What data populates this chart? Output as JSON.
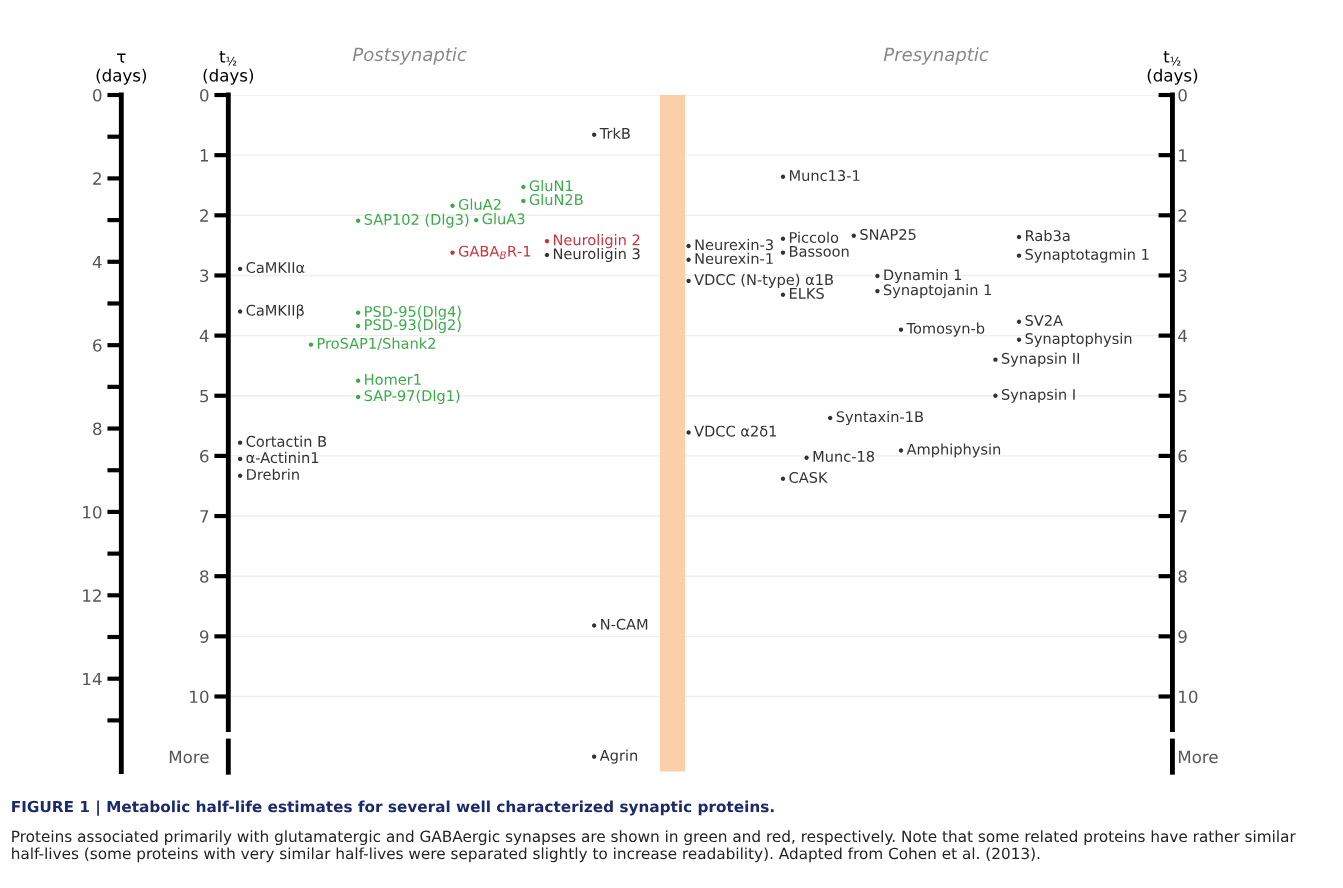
{
  "chart_data": {
    "type": "scatter",
    "marker": "circle",
    "grid": "y",
    "categories": [
      null,
      null,
      null,
      null,
      null,
      null,
      null,
      null,
      null,
      null,
      null,
      null,
      null,
      null,
      null,
      null,
      null,
      null,
      null,
      null,
      null,
      null,
      null,
      null,
      null,
      null,
      null,
      null,
      null,
      null,
      null,
      null,
      null,
      null,
      null,
      null,
      null,
      null,
      null,
      null
    ],
    "ylabel": "t$_{½}$\n(days)",
    "y2label": "τ\n(days)",
    "y3label": "t$_{½}$\n(days)",
    "ylim": [
      11.25,
      0
    ],
    "yticks": [
      0,
      1,
      2,
      3,
      4,
      5,
      6,
      7,
      8,
      9,
      10,
      {
        "value": 11,
        "label": "More"
      }
    ],
    "y2lim": [
      16.23,
      0
    ],
    "y2ticks": [
      0,
      2,
      4,
      6,
      8,
      10,
      12,
      14
    ],
    "y3lim": [
      11.25,
      0
    ],
    "y3ticks": [
      0,
      1,
      2,
      3,
      4,
      5,
      6,
      7,
      8,
      9,
      10,
      {
        "value": 11,
        "label": "More"
      }
    ],
    "series": [
      {
        "values": [
          2.89,
          null,
          null,
          4.15,
          null,
          2.09,
          null,
          null,
          null,
          1.84,
          2.08,
          null,
          1.53,
          2.43,
          null,
          0.66,
          null,
          null,
          null,
          2.51,
          null,
          null,
          null,
          1.36,
          6.03,
          5.37,
          2.34,
          3.01,
          3.9,
          null,
          null,
          null,
          4.4,
          2.36,
          null,
          null,
          null,
          null,
          null,
          null
        ],
        "value_labels": [
          "CaMKIIα",
          null,
          null,
          "ProSAP1/Shank2",
          null,
          "SAP102 (Dlg3)",
          null,
          null,
          null,
          "GluA2",
          "GluA3",
          null,
          "GluN1",
          "Neuroligin 2",
          null,
          "TrkB",
          null,
          null,
          null,
          "Neurexin-3",
          null,
          null,
          null,
          "Munc13-1",
          "Munc-18",
          "Syntaxin-1B",
          "SNAP25",
          "Dynamin 1",
          "Tomosyn-b",
          null,
          null,
          null,
          "Synapsin II",
          "Rab3a",
          null,
          null,
          null,
          null,
          null,
          null
        ],
        "colors": [
          "#333333",
          null,
          null,
          "#3aaa48",
          null,
          "#3aaa48",
          null,
          null,
          null,
          "#3aaa48",
          "#3aaa48",
          null,
          "#3aaa48",
          "#c8323a",
          null,
          "#333333",
          null,
          null,
          null,
          "#333333",
          null,
          null,
          null,
          "#333333",
          "#333333",
          "#333333",
          "#333333",
          "#333333",
          "#333333",
          null,
          null,
          null,
          "#333333",
          "#333333",
          null,
          null,
          null,
          null,
          null,
          null
        ]
      },
      {
        "values": [
          3.6,
          null,
          null,
          null,
          null,
          3.62,
          null,
          null,
          null,
          2.62,
          null,
          null,
          1.76,
          2.66,
          null,
          8.82,
          null,
          null,
          null,
          2.74,
          null,
          null,
          null,
          2.39,
          null,
          null,
          null,
          3.26,
          5.91,
          null,
          null,
          null,
          5.0,
          2.67,
          null,
          null,
          null,
          null,
          null,
          null
        ],
        "value_labels": [
          "CaMKIIβ",
          null,
          null,
          null,
          null,
          "PSD-95(Dlg4)",
          null,
          null,
          null,
          "GABA$_{B}$R-1",
          null,
          null,
          "GluN2B",
          "Neuroligin 3",
          null,
          "N-CAM",
          null,
          null,
          null,
          "Neurexin-1",
          null,
          null,
          null,
          "Piccolo",
          null,
          null,
          null,
          "Synaptojanin 1",
          "Amphiphysin",
          null,
          null,
          null,
          "Synapsin I",
          "Synaptotagmin 1",
          null,
          null,
          null,
          null,
          null,
          null
        ],
        "colors": [
          "#333333",
          null,
          null,
          null,
          null,
          "#3aaa48",
          null,
          null,
          null,
          "#c8323a",
          null,
          null,
          "#3aaa48",
          "#333333",
          null,
          "#333333",
          null,
          null,
          null,
          "#333333",
          null,
          null,
          null,
          "#333333",
          null,
          null,
          null,
          "#333333",
          "#333333",
          null,
          null,
          null,
          "#333333",
          "#333333",
          null,
          null,
          null,
          null,
          null,
          null
        ]
      },
      {
        "values": [
          5.78,
          null,
          null,
          null,
          null,
          3.84,
          null,
          null,
          null,
          null,
          null,
          null,
          null,
          null,
          null,
          11,
          null,
          null,
          null,
          3.09,
          null,
          null,
          null,
          2.62,
          null,
          null,
          null,
          null,
          null,
          null,
          null,
          null,
          null,
          3.77,
          null,
          null,
          null,
          null,
          null,
          null
        ],
        "value_labels": [
          "Cortactin B",
          null,
          null,
          null,
          null,
          "PSD-93(Dlg2)",
          null,
          null,
          null,
          null,
          null,
          null,
          null,
          null,
          null,
          "Agrin",
          null,
          null,
          null,
          "VDCC (N-type) α1B",
          null,
          null,
          null,
          "Bassoon",
          null,
          null,
          null,
          null,
          null,
          null,
          null,
          null,
          null,
          "SV2A",
          null,
          null,
          null,
          null,
          null,
          null
        ],
        "colors": [
          "#333333",
          null,
          null,
          null,
          null,
          "#3aaa48",
          null,
          null,
          null,
          null,
          null,
          null,
          null,
          null,
          null,
          "#333333",
          null,
          null,
          null,
          "#333333",
          null,
          null,
          null,
          "#333333",
          null,
          null,
          null,
          null,
          null,
          null,
          null,
          null,
          null,
          "#333333",
          null,
          null,
          null,
          null,
          null,
          null
        ]
      },
      {
        "values": [
          6.05,
          null,
          null,
          null,
          null,
          4.75,
          null,
          null,
          null,
          null,
          null,
          null,
          null,
          null,
          null,
          null,
          null,
          null,
          null,
          5.61,
          null,
          null,
          null,
          3.32,
          null,
          null,
          null,
          null,
          null,
          null,
          null,
          null,
          null,
          4.07,
          null,
          null,
          null,
          null,
          null,
          null
        ],
        "value_labels": [
          "α-Actinin1",
          null,
          null,
          null,
          null,
          "Homer1",
          null,
          null,
          null,
          null,
          null,
          null,
          null,
          null,
          null,
          null,
          null,
          null,
          null,
          "VDCC α2δ1",
          null,
          null,
          null,
          "ELKS",
          null,
          null,
          null,
          null,
          null,
          null,
          null,
          null,
          null,
          "Synaptophysin",
          null,
          null,
          null,
          null,
          null,
          null
        ],
        "colors": [
          "#333333",
          null,
          null,
          null,
          null,
          "#3aaa48",
          null,
          null,
          null,
          null,
          null,
          null,
          null,
          null,
          null,
          null,
          null,
          null,
          null,
          "#333333",
          null,
          null,
          null,
          "#333333",
          null,
          null,
          null,
          null,
          null,
          null,
          null,
          null,
          null,
          "#333333",
          null,
          null,
          null,
          null,
          null,
          null
        ]
      },
      {
        "values": [
          6.33,
          null,
          null,
          null,
          null,
          5.02,
          null,
          null,
          null,
          null,
          null,
          null,
          null,
          null,
          null,
          null,
          null,
          null,
          null,
          null,
          null,
          null,
          null,
          6.38,
          null,
          null,
          null,
          null,
          null,
          null,
          null,
          null,
          null,
          null,
          null,
          null,
          null,
          null,
          null,
          null
        ],
        "value_labels": [
          "Drebrin",
          null,
          null,
          null,
          null,
          "SAP-97(Dlg1)",
          null,
          null,
          null,
          null,
          null,
          null,
          null,
          null,
          null,
          null,
          null,
          null,
          null,
          null,
          null,
          null,
          null,
          "CASK",
          null,
          null,
          null,
          null,
          null,
          null,
          null,
          null,
          null,
          null,
          null,
          null,
          null,
          null,
          null,
          null
        ],
        "colors": [
          "#333333",
          null,
          null,
          null,
          null,
          "#3aaa48",
          null,
          null,
          null,
          null,
          null,
          null,
          null,
          null,
          null,
          null,
          null,
          null,
          null,
          null,
          null,
          null,
          null,
          "#333333",
          null,
          null,
          null,
          null,
          null,
          null,
          null,
          null,
          null,
          null,
          null,
          null,
          null,
          null,
          null,
          null
        ]
      }
    ],
    "annotations": [
      "Postsynaptic",
      "Presynaptic",
      "FIGURE 1 | Metabolic half-life estimates for several well characterized synaptic proteins.",
      "Proteins associated primarily with glutamatergic and GABAergic synapses are shown in green and red, respectively. Note that some related proteins have rather similar half-lives (some proteins with very similar half-lives were separated slightly to increase readability). Adapted from Cohen et al. (2013)."
    ]
  }
}
